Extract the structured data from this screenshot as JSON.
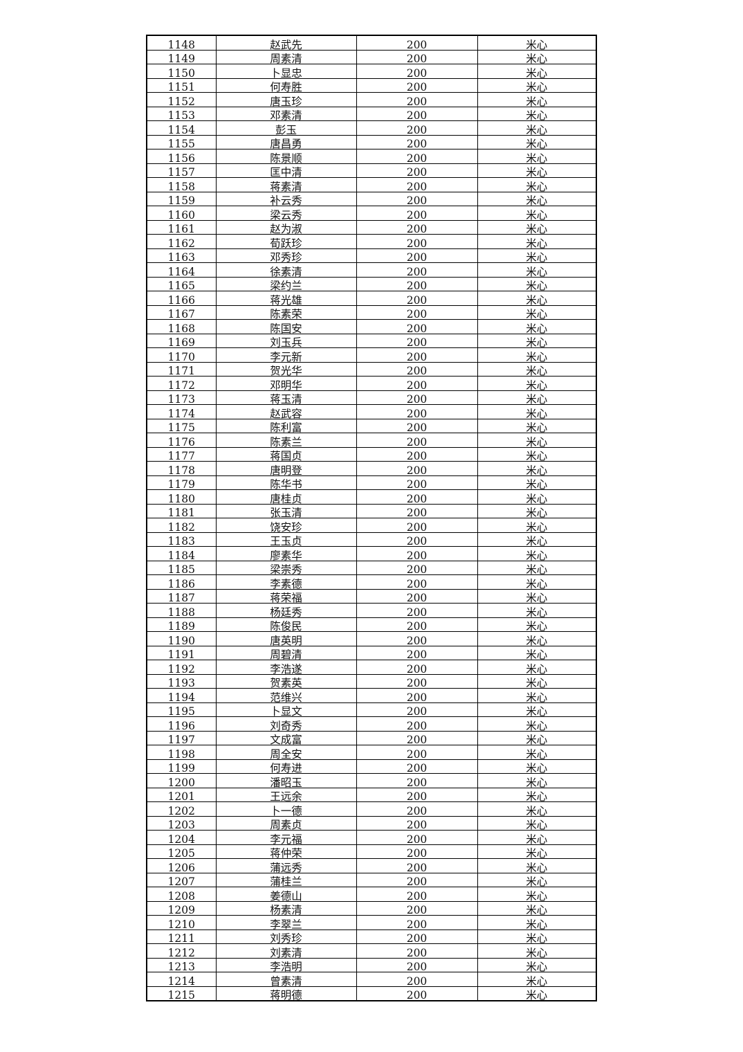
{
  "table": {
    "rows": [
      {
        "no": "1148",
        "name": "赵武先",
        "amount": "200",
        "village": "米心"
      },
      {
        "no": "1149",
        "name": "周素清",
        "amount": "200",
        "village": "米心"
      },
      {
        "no": "1150",
        "name": "卜显忠",
        "amount": "200",
        "village": "米心"
      },
      {
        "no": "1151",
        "name": "何寿胜",
        "amount": "200",
        "village": "米心"
      },
      {
        "no": "1152",
        "name": "唐玉珍",
        "amount": "200",
        "village": "米心"
      },
      {
        "no": "1153",
        "name": "邓素清",
        "amount": "200",
        "village": "米心"
      },
      {
        "no": "1154",
        "name": "彭玉",
        "amount": "200",
        "village": "米心"
      },
      {
        "no": "1155",
        "name": "唐昌勇",
        "amount": "200",
        "village": "米心"
      },
      {
        "no": "1156",
        "name": "陈景顺",
        "amount": "200",
        "village": "米心"
      },
      {
        "no": "1157",
        "name": "匡中清",
        "amount": "200",
        "village": "米心"
      },
      {
        "no": "1158",
        "name": "蒋素清",
        "amount": "200",
        "village": "米心"
      },
      {
        "no": "1159",
        "name": "补云秀",
        "amount": "200",
        "village": "米心"
      },
      {
        "no": "1160",
        "name": "梁云秀",
        "amount": "200",
        "village": "米心"
      },
      {
        "no": "1161",
        "name": "赵为淑",
        "amount": "200",
        "village": "米心"
      },
      {
        "no": "1162",
        "name": "荀跃珍",
        "amount": "200",
        "village": "米心"
      },
      {
        "no": "1163",
        "name": "邓秀珍",
        "amount": "200",
        "village": "米心"
      },
      {
        "no": "1164",
        "name": "徐素清",
        "amount": "200",
        "village": "米心"
      },
      {
        "no": "1165",
        "name": "梁约兰",
        "amount": "200",
        "village": "米心"
      },
      {
        "no": "1166",
        "name": "蒋光雄",
        "amount": "200",
        "village": "米心"
      },
      {
        "no": "1167",
        "name": "陈素荣",
        "amount": "200",
        "village": "米心"
      },
      {
        "no": "1168",
        "name": "陈国安",
        "amount": "200",
        "village": "米心"
      },
      {
        "no": "1169",
        "name": "刘玉兵",
        "amount": "200",
        "village": "米心"
      },
      {
        "no": "1170",
        "name": "李元新",
        "amount": "200",
        "village": "米心"
      },
      {
        "no": "1171",
        "name": "贺光华",
        "amount": "200",
        "village": "米心"
      },
      {
        "no": "1172",
        "name": "邓明华",
        "amount": "200",
        "village": "米心"
      },
      {
        "no": "1173",
        "name": "蒋玉清",
        "amount": "200",
        "village": "米心"
      },
      {
        "no": "1174",
        "name": "赵武容",
        "amount": "200",
        "village": "米心"
      },
      {
        "no": "1175",
        "name": "陈利富",
        "amount": "200",
        "village": "米心"
      },
      {
        "no": "1176",
        "name": "陈素兰",
        "amount": "200",
        "village": "米心"
      },
      {
        "no": "1177",
        "name": "蒋国贞",
        "amount": "200",
        "village": "米心"
      },
      {
        "no": "1178",
        "name": "唐明登",
        "amount": "200",
        "village": "米心"
      },
      {
        "no": "1179",
        "name": "陈华书",
        "amount": "200",
        "village": "米心"
      },
      {
        "no": "1180",
        "name": "唐桂贞",
        "amount": "200",
        "village": "米心"
      },
      {
        "no": "1181",
        "name": "张玉清",
        "amount": "200",
        "village": "米心"
      },
      {
        "no": "1182",
        "name": "饶安珍",
        "amount": "200",
        "village": "米心"
      },
      {
        "no": "1183",
        "name": "王玉贞",
        "amount": "200",
        "village": "米心"
      },
      {
        "no": "1184",
        "name": "廖素华",
        "amount": "200",
        "village": "米心"
      },
      {
        "no": "1185",
        "name": "梁崇秀",
        "amount": "200",
        "village": "米心"
      },
      {
        "no": "1186",
        "name": "李素德",
        "amount": "200",
        "village": "米心"
      },
      {
        "no": "1187",
        "name": "蒋荣福",
        "amount": "200",
        "village": "米心"
      },
      {
        "no": "1188",
        "name": "杨廷秀",
        "amount": "200",
        "village": "米心"
      },
      {
        "no": "1189",
        "name": "陈俊民",
        "amount": "200",
        "village": "米心"
      },
      {
        "no": "1190",
        "name": "唐英明",
        "amount": "200",
        "village": "米心"
      },
      {
        "no": "1191",
        "name": "周碧清",
        "amount": "200",
        "village": "米心"
      },
      {
        "no": "1192",
        "name": "李浩遂",
        "amount": "200",
        "village": "米心"
      },
      {
        "no": "1193",
        "name": "贺素英",
        "amount": "200",
        "village": "米心"
      },
      {
        "no": "1194",
        "name": "范维兴",
        "amount": "200",
        "village": "米心"
      },
      {
        "no": "1195",
        "name": "卜显文",
        "amount": "200",
        "village": "米心"
      },
      {
        "no": "1196",
        "name": "刘奇秀",
        "amount": "200",
        "village": "米心"
      },
      {
        "no": "1197",
        "name": "文成富",
        "amount": "200",
        "village": "米心"
      },
      {
        "no": "1198",
        "name": "周全安",
        "amount": "200",
        "village": "米心"
      },
      {
        "no": "1199",
        "name": "何寿进",
        "amount": "200",
        "village": "米心"
      },
      {
        "no": "1200",
        "name": "潘昭玉",
        "amount": "200",
        "village": "米心"
      },
      {
        "no": "1201",
        "name": "王远余",
        "amount": "200",
        "village": "米心"
      },
      {
        "no": "1202",
        "name": "卜一德",
        "amount": "200",
        "village": "米心"
      },
      {
        "no": "1203",
        "name": "周素贞",
        "amount": "200",
        "village": "米心"
      },
      {
        "no": "1204",
        "name": "李元福",
        "amount": "200",
        "village": "米心"
      },
      {
        "no": "1205",
        "name": "蒋仲荣",
        "amount": "200",
        "village": "米心"
      },
      {
        "no": "1206",
        "name": "蒲远秀",
        "amount": "200",
        "village": "米心"
      },
      {
        "no": "1207",
        "name": "蒲桂兰",
        "amount": "200",
        "village": "米心"
      },
      {
        "no": "1208",
        "name": "姜德山",
        "amount": "200",
        "village": "米心"
      },
      {
        "no": "1209",
        "name": "杨素清",
        "amount": "200",
        "village": "米心"
      },
      {
        "no": "1210",
        "name": "李翠兰",
        "amount": "200",
        "village": "米心"
      },
      {
        "no": "1211",
        "name": "刘秀珍",
        "amount": "200",
        "village": "米心"
      },
      {
        "no": "1212",
        "name": "刘素清",
        "amount": "200",
        "village": "米心"
      },
      {
        "no": "1213",
        "name": "李浩明",
        "amount": "200",
        "village": "米心"
      },
      {
        "no": "1214",
        "name": "曾素清",
        "amount": "200",
        "village": "米心"
      },
      {
        "no": "1215",
        "name": "蒋明德",
        "amount": "200",
        "village": "米心"
      }
    ]
  }
}
